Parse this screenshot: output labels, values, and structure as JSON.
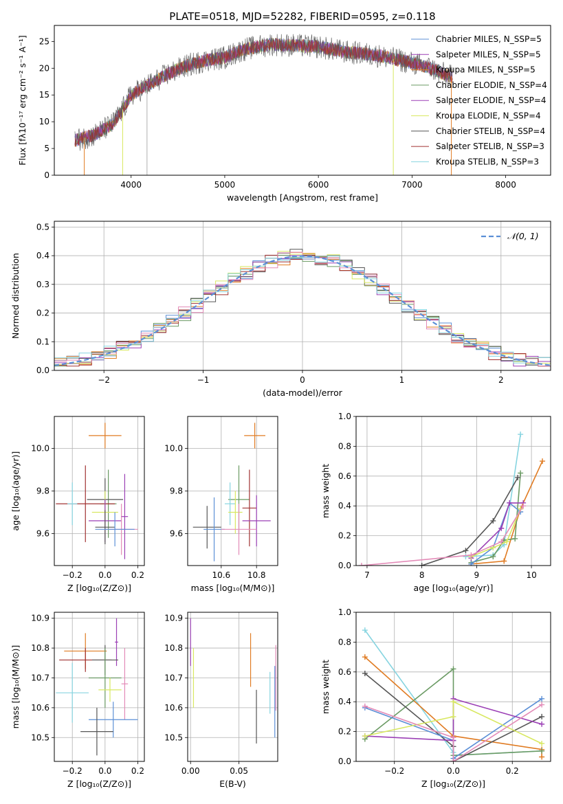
{
  "title": "PLATE=0518, MJD=52282, FIBERID=0595, z=0.118",
  "colors": [
    "#5b8fd6",
    "#e07b22",
    "#6a9a63",
    "#9b3fb5",
    "#d8e860",
    "#555555",
    "#a03030",
    "#e38ab7",
    "#86d4e0"
  ],
  "chart_data": [
    {
      "type": "line",
      "id": "spectrum",
      "xlabel": "wavelength [Angstrom, rest frame]",
      "ylabel": "Flux [fλ10⁻¹⁷ erg cm⁻² s⁻¹ A⁻¹]",
      "xlim": [
        3180,
        8480
      ],
      "ylim": [
        0,
        28
      ],
      "xticks": [
        4000,
        5000,
        6000,
        7000,
        8000
      ],
      "yticks": [
        0,
        5,
        10,
        15,
        20,
        25
      ],
      "grid": false,
      "legend_position": "right",
      "series": [
        {
          "name": "Chabrier MILES, N_SSP=5",
          "color": "#5b8fd6"
        },
        {
          "name": "Salpeter MILES, N_SSP=5",
          "color": "#9b3fb5"
        },
        {
          "name": "Kroupa MILES, N_SSP=5",
          "color": "#e07b22"
        },
        {
          "name": "Chabrier ELODIE, N_SSP=4",
          "color": "#6a9a63"
        },
        {
          "name": "Salpeter ELODIE, N_SSP=4",
          "color": "#9b3fb5"
        },
        {
          "name": "Kroupa ELODIE, N_SSP=4",
          "color": "#d8e860"
        },
        {
          "name": "Chabrier STELIB, N_SSP=4",
          "color": "#555555"
        },
        {
          "name": "Salpeter STELIB, N_SSP=3",
          "color": "#a03030"
        },
        {
          "name": "Kroupa STELIB, N_SSP=3",
          "color": "#86d4e0"
        }
      ],
      "continuum": [
        [
          3400,
          6.5
        ],
        [
          3600,
          7.5
        ],
        [
          3800,
          9.5
        ],
        [
          3900,
          12
        ],
        [
          4000,
          15
        ],
        [
          4200,
          17
        ],
        [
          4400,
          19
        ],
        [
          4600,
          20.5
        ],
        [
          4800,
          21.5
        ],
        [
          5000,
          22
        ],
        [
          5200,
          23.5
        ],
        [
          5500,
          24.5
        ],
        [
          6000,
          24
        ],
        [
          6300,
          23
        ],
        [
          6600,
          22.5
        ],
        [
          7000,
          21
        ],
        [
          7200,
          20
        ],
        [
          7400,
          18.5
        ]
      ]
    },
    {
      "type": "line",
      "id": "residuals",
      "xlabel": "(data-model)/error",
      "ylabel": "Normed distribution",
      "xlim": [
        -2.5,
        2.5
      ],
      "ylim": [
        0,
        0.52
      ],
      "xticks": [
        -2,
        -1,
        0,
        1,
        2
      ],
      "yticks": [
        0.0,
        0.1,
        0.2,
        0.3,
        0.4,
        0.5
      ],
      "grid": true,
      "legend_position": "top-right",
      "legend": [
        "𝒩(0, 1)"
      ],
      "gaussian": {
        "mean": 0,
        "sigma": 1,
        "color": "#5b8fd6"
      }
    },
    {
      "type": "scatter",
      "id": "age-vs-Z",
      "xlabel": "Z [log₁₀(Z/Z⊙)]",
      "ylabel": "age  [log₁₀(age/yr)]",
      "xlim": [
        -0.31,
        0.24
      ],
      "ylim": [
        9.45,
        10.15
      ],
      "xticks": [
        -0.2,
        0.0,
        0.2
      ],
      "yticks": [
        9.6,
        9.8,
        10.0
      ],
      "grid": true,
      "points": [
        {
          "x": 0.0,
          "xerr": 0.1,
          "y": 10.06,
          "yerr": 0.06,
          "color": "#e07b22"
        },
        {
          "x": 0.02,
          "xerr": 0.05,
          "y": 9.74,
          "yerr": 0.16,
          "color": "#6a9a63"
        },
        {
          "x": 0.0,
          "xerr": 0.11,
          "y": 9.76,
          "yerr": 0.1,
          "color": "#555555"
        },
        {
          "x": -0.12,
          "xerr": 0.18,
          "y": 9.74,
          "yerr": 0.18,
          "color": "#a03030"
        },
        {
          "x": -0.2,
          "xerr": 0.03,
          "y": 9.74,
          "yerr": 0.1,
          "color": "#86d4e0"
        },
        {
          "x": 0.0,
          "xerr": 0.08,
          "y": 9.7,
          "yerr": 0.1,
          "color": "#d8e860"
        },
        {
          "x": 0.0,
          "xerr": 0.1,
          "y": 9.66,
          "yerr": 0.1,
          "color": "#9b3fb5"
        },
        {
          "x": 0.0,
          "xerr": 0.06,
          "y": 9.63,
          "yerr": 0.08,
          "color": "#555555"
        },
        {
          "x": 0.1,
          "xerr": 0.1,
          "y": 9.62,
          "yerr": 0.12,
          "color": "#e38ab7"
        },
        {
          "x": 0.12,
          "xerr": 0.02,
          "y": 9.68,
          "yerr": 0.2,
          "color": "#9b3fb5"
        },
        {
          "x": 0.06,
          "xerr": 0.12,
          "y": 9.62,
          "yerr": 0.08,
          "color": "#5b8fd6"
        }
      ]
    },
    {
      "type": "scatter",
      "id": "age-vs-mass",
      "xlabel": "mass [log₁₀(M/M⊙)]",
      "ylabel": "",
      "xlim": [
        10.41,
        10.92
      ],
      "ylim": [
        9.45,
        10.15
      ],
      "xticks": [
        10.6,
        10.8
      ],
      "yticks": [
        9.6,
        9.8,
        10.0
      ],
      "grid": true,
      "points": [
        {
          "x": 10.79,
          "xerr": 0.06,
          "y": 10.06,
          "yerr": 0.06,
          "color": "#e07b22"
        },
        {
          "x": 10.7,
          "xerr": 0.06,
          "y": 9.76,
          "yerr": 0.16,
          "color": "#6a9a63"
        },
        {
          "x": 10.76,
          "xerr": 0.04,
          "y": 9.72,
          "yerr": 0.18,
          "color": "#a03030"
        },
        {
          "x": 10.65,
          "xerr": 0.03,
          "y": 9.74,
          "yerr": 0.1,
          "color": "#86d4e0"
        },
        {
          "x": 10.68,
          "xerr": 0.04,
          "y": 9.7,
          "yerr": 0.1,
          "color": "#d8e860"
        },
        {
          "x": 10.8,
          "xerr": 0.08,
          "y": 9.66,
          "yerr": 0.12,
          "color": "#9b3fb5"
        },
        {
          "x": 10.52,
          "xerr": 0.08,
          "y": 9.63,
          "yerr": 0.1,
          "color": "#555555"
        },
        {
          "x": 10.56,
          "xerr": 0.06,
          "y": 9.62,
          "yerr": 0.15,
          "color": "#5b8fd6"
        },
        {
          "x": 10.7,
          "xerr": 0.1,
          "y": 9.62,
          "yerr": 0.12,
          "color": "#e38ab7"
        }
      ]
    },
    {
      "type": "line",
      "id": "mass-weight-vs-age",
      "xlabel": "age  [log₁₀(age/yr)]",
      "ylabel": "mass weight",
      "xlim": [
        6.8,
        10.35
      ],
      "ylim": [
        0,
        1.0
      ],
      "xticks": [
        7,
        8,
        9,
        10
      ],
      "yticks": [
        0.0,
        0.2,
        0.4,
        0.6,
        0.8,
        1.0
      ],
      "grid": true,
      "series": [
        {
          "color": "#86d4e0",
          "x": [
            8.8,
            9.3,
            9.5,
            9.8
          ],
          "y": [
            0.06,
            0.07,
            0.14,
            0.88
          ]
        },
        {
          "color": "#e07b22",
          "x": [
            8.9,
            9.5,
            9.8,
            10.2
          ],
          "y": [
            0.01,
            0.03,
            0.38,
            0.7
          ]
        },
        {
          "color": "#6a9a63",
          "x": [
            8.9,
            9.3,
            9.5,
            9.7,
            9.8
          ],
          "y": [
            0.02,
            0.06,
            0.17,
            0.18,
            0.62
          ]
        },
        {
          "color": "#555555",
          "x": [
            8.0,
            8.8,
            9.3,
            9.75
          ],
          "y": [
            0.0,
            0.1,
            0.3,
            0.59
          ]
        },
        {
          "color": "#5b8fd6",
          "x": [
            8.9,
            9.3,
            9.6,
            9.8
          ],
          "y": [
            0.01,
            0.12,
            0.42,
            0.36
          ]
        },
        {
          "color": "#9b3fb5",
          "x": [
            8.9,
            9.45,
            9.6,
            9.85
          ],
          "y": [
            0.05,
            0.25,
            0.42,
            0.42
          ]
        },
        {
          "color": "#d8e860",
          "x": [
            8.9,
            9.3,
            9.55,
            9.8
          ],
          "y": [
            0.06,
            0.12,
            0.16,
            0.38
          ]
        },
        {
          "color": "#e38ab7",
          "x": [
            6.9,
            8.9,
            9.45,
            9.85
          ],
          "y": [
            0.0,
            0.07,
            0.16,
            0.4
          ]
        }
      ]
    },
    {
      "type": "scatter",
      "id": "mass-vs-Z",
      "xlabel": "Z [log₁₀(Z/Z⊙)]",
      "ylabel": "mass [log₁₀(M/M⊙)]",
      "xlim": [
        -0.31,
        0.24
      ],
      "ylim": [
        10.42,
        10.92
      ],
      "xticks": [
        -0.2,
        0.0,
        0.2
      ],
      "yticks": [
        10.5,
        10.6,
        10.7,
        10.8,
        10.9
      ],
      "grid": true,
      "points": [
        {
          "x": -0.12,
          "xerr": 0.13,
          "y": 10.79,
          "yerr": 0.06,
          "color": "#e07b22"
        },
        {
          "x": 0.07,
          "xerr": 0.01,
          "y": 10.82,
          "yerr": 0.08,
          "color": "#9b3fb5"
        },
        {
          "x": -0.12,
          "xerr": 0.16,
          "y": 10.76,
          "yerr": 0.04,
          "color": "#a03030"
        },
        {
          "x": 0.0,
          "xerr": 0.08,
          "y": 10.76,
          "yerr": 0.05,
          "color": "#555555"
        },
        {
          "x": 0.0,
          "xerr": 0.1,
          "y": 10.7,
          "yerr": 0.1,
          "color": "#6a9a63"
        },
        {
          "x": 0.12,
          "xerr": 0.02,
          "y": 10.68,
          "yerr": 0.12,
          "color": "#e38ab7"
        },
        {
          "x": 0.03,
          "xerr": 0.07,
          "y": 10.66,
          "yerr": 0.04,
          "color": "#d8e860"
        },
        {
          "x": -0.2,
          "xerr": 0.1,
          "y": 10.65,
          "yerr": 0.1,
          "color": "#86d4e0"
        },
        {
          "x": 0.05,
          "xerr": 0.15,
          "y": 10.56,
          "yerr": 0.06,
          "color": "#5b8fd6"
        },
        {
          "x": -0.05,
          "xerr": 0.1,
          "y": 10.52,
          "yerr": 0.08,
          "color": "#555555"
        }
      ]
    },
    {
      "type": "scatter",
      "id": "mass-vs-EBV",
      "xlabel": "E(B-V)",
      "ylabel": "",
      "xlim": [
        -0.003,
        0.09
      ],
      "ylim": [
        10.42,
        10.92
      ],
      "xticks": [
        0.0,
        0.05
      ],
      "yticks": [
        10.5,
        10.6,
        10.7,
        10.8,
        10.9
      ],
      "grid": true,
      "points": [
        {
          "x": 0.0,
          "xerr": 0.0,
          "y": 10.82,
          "yerr": 0.08,
          "color": "#9b3fb5"
        },
        {
          "x": 0.003,
          "xerr": 0.0,
          "y": 10.7,
          "yerr": 0.1,
          "color": "#d8e860"
        },
        {
          "x": 0.062,
          "xerr": 0.0,
          "y": 10.76,
          "yerr": 0.09,
          "color": "#e07b22"
        },
        {
          "x": 0.068,
          "xerr": 0.0,
          "y": 10.57,
          "yerr": 0.09,
          "color": "#555555"
        },
        {
          "x": 0.082,
          "xerr": 0.0,
          "y": 10.65,
          "yerr": 0.07,
          "color": "#86d4e0"
        },
        {
          "x": 0.087,
          "xerr": 0.0,
          "y": 10.62,
          "yerr": 0.12,
          "color": "#5b8fd6"
        },
        {
          "x": 0.088,
          "xerr": 0.0,
          "y": 10.7,
          "yerr": 0.11,
          "color": "#e38ab7"
        }
      ]
    },
    {
      "type": "line",
      "id": "mass-weight-vs-Z",
      "xlabel": "Z [log₁₀(Z/Z⊙)]",
      "ylabel": "mass weight",
      "xlim": [
        -0.33,
        0.33
      ],
      "ylim": [
        0,
        1.0
      ],
      "xticks": [
        -0.2,
        0.0,
        0.2
      ],
      "yticks": [
        0.0,
        0.2,
        0.4,
        0.6,
        0.8,
        1.0
      ],
      "grid": true,
      "series": [
        {
          "color": "#86d4e0",
          "x": [
            -0.3,
            0.0,
            0.0,
            0.3
          ],
          "y": [
            0.88,
            0.06,
            0.04,
            0.07
          ]
        },
        {
          "color": "#e07b22",
          "x": [
            -0.3,
            0.0,
            0.3,
            0.3
          ],
          "y": [
            0.7,
            0.17,
            0.08,
            0.03
          ]
        },
        {
          "color": "#6a9a63",
          "x": [
            -0.3,
            0.0,
            0.0,
            0.3
          ],
          "y": [
            0.15,
            0.62,
            0.04,
            0.07
          ]
        },
        {
          "color": "#555555",
          "x": [
            -0.3,
            0.0,
            0.0,
            0.3
          ],
          "y": [
            0.59,
            0.1,
            0.0,
            0.3
          ]
        },
        {
          "color": "#5b8fd6",
          "x": [
            -0.3,
            0.0,
            0.0,
            0.3
          ],
          "y": [
            0.36,
            0.14,
            0.02,
            0.42
          ]
        },
        {
          "color": "#9b3fb5",
          "x": [
            -0.3,
            0.0,
            0.0,
            0.3
          ],
          "y": [
            0.17,
            0.14,
            0.42,
            0.25
          ]
        },
        {
          "color": "#d8e860",
          "x": [
            -0.3,
            0.0,
            0.0,
            0.3
          ],
          "y": [
            0.17,
            0.3,
            0.4,
            0.12
          ]
        },
        {
          "color": "#e38ab7",
          "x": [
            -0.3,
            0.0,
            0.0,
            0.3
          ],
          "y": [
            0.37,
            0.16,
            0.0,
            0.38
          ]
        }
      ]
    }
  ]
}
